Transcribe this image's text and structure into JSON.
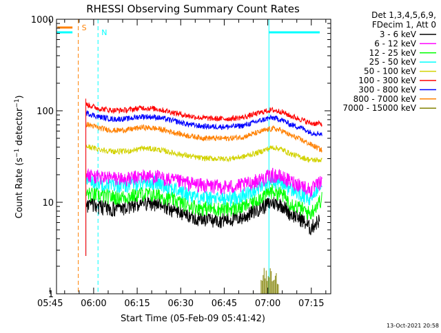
{
  "chart_data": {
    "type": "line",
    "title": "RHESSI Observing Summary Count Rates",
    "xlabel": "Start Time (05-Feb-09 05:41:42)",
    "ylabel_parts": [
      "Count Rate (s",
      "−1",
      " detector",
      "−1",
      ")"
    ],
    "y_scale": "log",
    "ylim": [
      1,
      1000
    ],
    "y_ticks": [
      {
        "value": 1,
        "label": "1"
      },
      {
        "value": 10,
        "label": "10"
      },
      {
        "value": 100,
        "label": "100"
      },
      {
        "value": 1000,
        "label": "1000"
      }
    ],
    "xlim_minutes": [
      5.5,
      100
    ],
    "x_ticks": [
      {
        "minutes": 3.3,
        "label": "05:45"
      },
      {
        "minutes": 18.3,
        "label": "06:00"
      },
      {
        "minutes": 33.3,
        "label": "06:15"
      },
      {
        "minutes": 48.3,
        "label": "06:30"
      },
      {
        "minutes": 63.3,
        "label": "06:45"
      },
      {
        "minutes": 78.3,
        "label": "07:00"
      },
      {
        "minutes": 93.3,
        "label": "07:15"
      }
    ],
    "legend_header": [
      "Det 1,3,4,5,6,9,",
      "FDecim 1, Att 0"
    ],
    "legend_placement": "top-right outside plot",
    "series": [
      {
        "name": "3 - 6 keV",
        "color": "#000000",
        "t_start": 15.6,
        "t_end": 96.2,
        "times": [
          15.6,
          20,
          25,
          30,
          35,
          40,
          45,
          50,
          55,
          60,
          65,
          70,
          75,
          78,
          80,
          83,
          86,
          90,
          93,
          96.2
        ],
        "values": [
          9.5,
          9,
          8.6,
          8.8,
          10,
          9.6,
          8.5,
          7.3,
          6.6,
          6.4,
          6.5,
          6.9,
          8.5,
          9.5,
          10,
          9.5,
          7.6,
          6.5,
          5.2,
          6.5
        ]
      },
      {
        "name": "6 - 12 keV",
        "color": "#ff00ff",
        "t_start": 15.6,
        "t_end": 97,
        "times": [
          15.6,
          20,
          25,
          30,
          35,
          40,
          45,
          50,
          55,
          60,
          65,
          70,
          75,
          78,
          80,
          83,
          86,
          90,
          93,
          97
        ],
        "values": [
          20,
          19,
          18.5,
          18,
          19.5,
          19,
          17.5,
          16.5,
          15.5,
          15,
          14.8,
          15.5,
          17.5,
          19,
          20,
          19,
          17,
          15.5,
          13.5,
          17
        ]
      },
      {
        "name": "12 - 25 keV",
        "color": "#00ff00",
        "t_start": 15.6,
        "t_end": 97,
        "times": [
          15.6,
          20,
          25,
          30,
          35,
          40,
          45,
          50,
          55,
          60,
          65,
          70,
          75,
          78,
          80,
          83,
          86,
          90,
          93,
          97
        ],
        "values": [
          12.5,
          12,
          11.5,
          11.5,
          12.5,
          12,
          11,
          9.5,
          8.8,
          8.5,
          8.5,
          9,
          11,
          12.5,
          13.5,
          12.5,
          10,
          8.5,
          7.5,
          11
        ]
      },
      {
        "name": "25 - 50 keV",
        "color": "#00ffff",
        "t_start": 15.6,
        "t_end": 97,
        "times": [
          15.6,
          20,
          25,
          30,
          35,
          40,
          45,
          50,
          55,
          60,
          65,
          70,
          75,
          78,
          80,
          83,
          86,
          90,
          93,
          97
        ],
        "values": [
          18,
          16.5,
          15.5,
          15.5,
          17,
          16.5,
          14.5,
          12.5,
          11.5,
          11,
          11,
          12,
          14.5,
          16.5,
          17.5,
          16.5,
          14,
          12,
          10.5,
          17
        ]
      },
      {
        "name": "50 - 100 keV",
        "color": "#d2d200",
        "t_start": 15.6,
        "t_end": 97,
        "times": [
          15.6,
          20,
          25,
          30,
          35,
          40,
          45,
          50,
          55,
          60,
          65,
          70,
          75,
          78,
          80,
          83,
          86,
          90,
          93,
          97
        ],
        "values": [
          41,
          38,
          36,
          36,
          39,
          38,
          35,
          32.5,
          30.5,
          30,
          30,
          31.5,
          35,
          38,
          40,
          38,
          34,
          31,
          29,
          29
        ]
      },
      {
        "name": "100 - 300 keV",
        "color": "#ff0000",
        "t_start": 15.6,
        "t_end": 97,
        "times": [
          15.6,
          20,
          25,
          30,
          35,
          40,
          45,
          50,
          55,
          60,
          65,
          70,
          75,
          78,
          80,
          83,
          86,
          90,
          93,
          97
        ],
        "values": [
          118,
          106,
          101,
          102,
          108,
          105,
          97,
          89,
          84,
          82,
          82,
          85,
          94,
          100,
          102,
          98,
          88,
          80,
          73,
          72
        ]
      },
      {
        "name": "300 - 800 keV",
        "color": "#0000ff",
        "t_start": 15.6,
        "t_end": 97,
        "times": [
          15.6,
          20,
          25,
          30,
          35,
          40,
          45,
          50,
          55,
          60,
          65,
          70,
          75,
          78,
          80,
          83,
          86,
          90,
          93,
          97
        ],
        "values": [
          95,
          86,
          81,
          82,
          87,
          85,
          79,
          72,
          68,
          67,
          67,
          69,
          77,
          82,
          84,
          80,
          71,
          65,
          58,
          56
        ]
      },
      {
        "name": "800 - 7000 keV",
        "color": "#ff8000",
        "t_start": 15.6,
        "t_end": 97,
        "times": [
          15.6,
          20,
          25,
          30,
          35,
          40,
          45,
          50,
          55,
          60,
          65,
          70,
          75,
          78,
          80,
          83,
          86,
          90,
          93,
          97
        ],
        "values": [
          72,
          65,
          61,
          62,
          66,
          64,
          59,
          54,
          51,
          50,
          50,
          52,
          58,
          62,
          64,
          61,
          54,
          48,
          43,
          37
        ]
      },
      {
        "name": "7000 - 15000 keV",
        "color": "#808000",
        "t_start": 76,
        "t_end": 82,
        "times": [
          76,
          77,
          78,
          79,
          80,
          81,
          82
        ],
        "values": [
          1.5,
          2,
          1.8,
          2,
          1.6,
          2,
          1.4
        ]
      }
    ],
    "annotations": [
      {
        "label": "S",
        "color": "#ff8000",
        "x_minutes": 13,
        "style": "dashed vertical line, horizontal bar at top"
      },
      {
        "label": "N",
        "color": "#00ffff",
        "x_minutes": 19.8,
        "style": "dashed vertical line, horizontal bar at top"
      }
    ],
    "grid": false
  },
  "footer_timestamp": "13-Oct-2021 20:58"
}
